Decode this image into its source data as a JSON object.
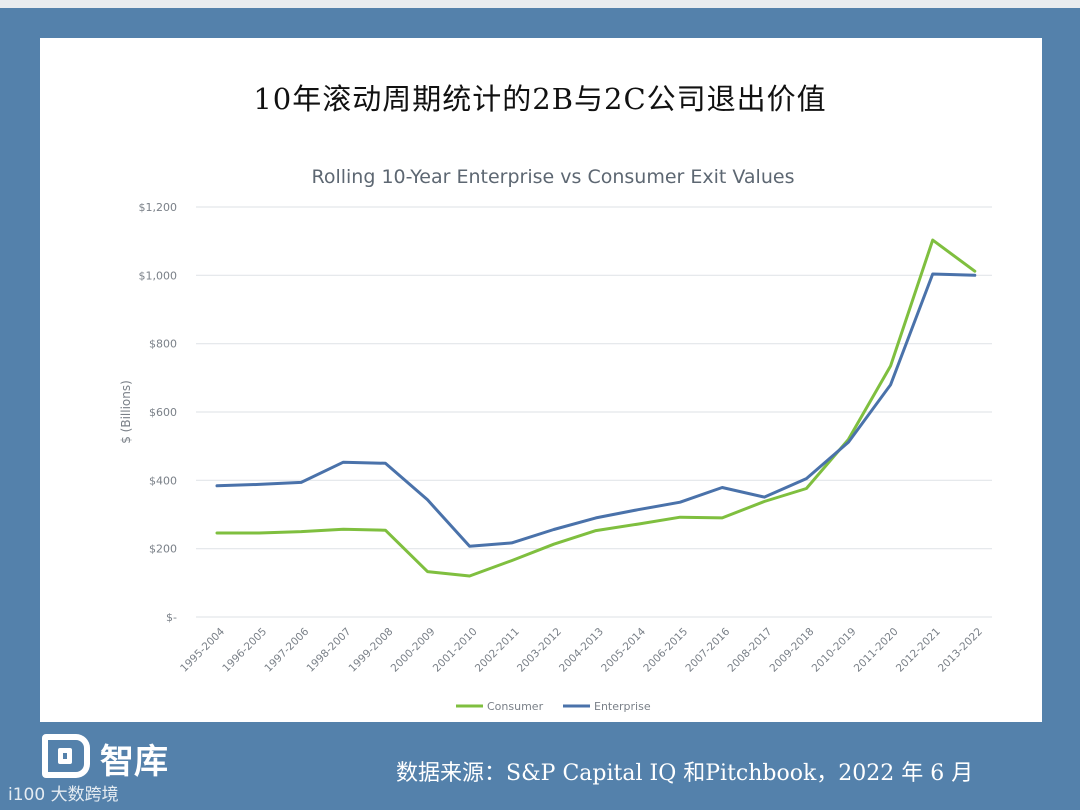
{
  "slide_title": "10年滚动周期统计的2B与2C公司退出价值",
  "footer_note": "数据来源：S&P Capital IQ 和Pitchbook，2022 年 6 月",
  "logo": {
    "name": "智库",
    "subtitle": "i100 大数跨境"
  },
  "colors": {
    "consumer": "#7fbf3f",
    "enterprise": "#4a72aa",
    "grid": "#e3e6ea",
    "text": "#7a8088"
  },
  "chart_data": {
    "type": "line",
    "title": "Rolling 10-Year Enterprise vs Consumer Exit Values",
    "xlabel": "",
    "ylabel": "$ (Billions)",
    "ylim": [
      0,
      1200
    ],
    "yticks": [
      0,
      200,
      400,
      600,
      800,
      1000,
      1200
    ],
    "ytick_labels": [
      "$-",
      "$200",
      "$400",
      "$600",
      "$800",
      "$1,000",
      "$1,200"
    ],
    "grid": true,
    "legend_position": "bottom-center",
    "categories": [
      "1995-2004",
      "1996-2005",
      "1997-2006",
      "1998-2007",
      "1999-2008",
      "2000-2009",
      "2001-2010",
      "2002-2011",
      "2003-2012",
      "2004-2013",
      "2005-2014",
      "2006-2015",
      "2007-2016",
      "2008-2017",
      "2009-2018",
      "2010-2019",
      "2011-2020",
      "2012-2021",
      "2013-2022"
    ],
    "series": [
      {
        "name": "Consumer",
        "color": "#7fbf3f",
        "values": [
          246,
          246,
          250,
          257,
          254,
          133,
          120,
          165,
          213,
          253,
          272,
          292,
          290,
          338,
          376,
          520,
          735,
          1103,
          1012
        ]
      },
      {
        "name": "Enterprise",
        "color": "#4a72aa",
        "values": [
          384,
          388,
          394,
          453,
          450,
          343,
          207,
          217,
          256,
          290,
          314,
          336,
          379,
          351,
          405,
          512,
          680,
          1004,
          1000
        ]
      }
    ]
  }
}
